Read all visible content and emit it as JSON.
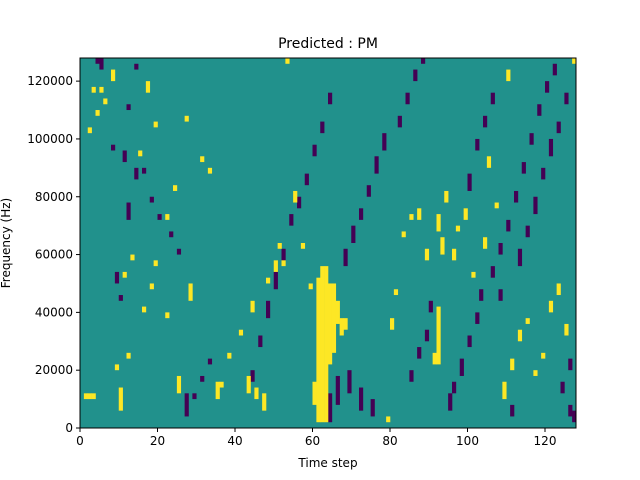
{
  "chart_data": {
    "type": "heatmap",
    "title": "Predicted : PM",
    "xlabel": "Time step",
    "ylabel": "Frequency (Hz)",
    "xlim": [
      0,
      128
    ],
    "ylim": [
      0,
      128000
    ],
    "x_ticks": [
      0,
      20,
      40,
      60,
      80,
      100,
      120
    ],
    "y_ticks": [
      0,
      20000,
      40000,
      60000,
      80000,
      100000,
      120000
    ],
    "x_tick_labels": [
      "0",
      "20",
      "40",
      "60",
      "80",
      "100",
      "120"
    ],
    "y_tick_labels": [
      "0",
      "20000",
      "40000",
      "60000",
      "80000",
      "100000",
      "120000"
    ],
    "n_time_steps": 128,
    "n_freq_bins": 64,
    "freq_bin_width_hz": 2000,
    "value_levels": [
      -1,
      0,
      1
    ],
    "colors": {
      "low": "#440154",
      "mid": "#21918c",
      "high": "#fde725"
    },
    "background_value": 0,
    "high_cells": [
      [
        60,
        4,
        8
      ],
      [
        61,
        1,
        26
      ],
      [
        62,
        1,
        28
      ],
      [
        63,
        1,
        28
      ],
      [
        64,
        11,
        25
      ],
      [
        65,
        13,
        25
      ],
      [
        66,
        18,
        22
      ],
      [
        67,
        16,
        19
      ],
      [
        68,
        17,
        19
      ],
      [
        59,
        24,
        25
      ],
      [
        91,
        11,
        13
      ],
      [
        92,
        11,
        21
      ],
      [
        93,
        30,
        33
      ],
      [
        94,
        39,
        41
      ],
      [
        92,
        34,
        37
      ],
      [
        1,
        5,
        6
      ],
      [
        2,
        5,
        6
      ],
      [
        3,
        5,
        6
      ],
      [
        10,
        3,
        7
      ],
      [
        9,
        10,
        11
      ],
      [
        12,
        12,
        13
      ],
      [
        11,
        26,
        27
      ],
      [
        13,
        29,
        30
      ],
      [
        16,
        20,
        21
      ],
      [
        18,
        24,
        25
      ],
      [
        19,
        28,
        29
      ],
      [
        22,
        19,
        20
      ],
      [
        25,
        6,
        9
      ],
      [
        28,
        22,
        25
      ],
      [
        3,
        58,
        59
      ],
      [
        5,
        58,
        59
      ],
      [
        8,
        60,
        62
      ],
      [
        2,
        51,
        52
      ],
      [
        4,
        54,
        55
      ],
      [
        6,
        56,
        57
      ],
      [
        15,
        47,
        48
      ],
      [
        17,
        58,
        60
      ],
      [
        19,
        52,
        53
      ],
      [
        22,
        36,
        37
      ],
      [
        24,
        41,
        42
      ],
      [
        27,
        53,
        54
      ],
      [
        31,
        46,
        47
      ],
      [
        33,
        44,
        45
      ],
      [
        43,
        6,
        9
      ],
      [
        45,
        5,
        7
      ],
      [
        47,
        3,
        6
      ],
      [
        52,
        28,
        29
      ],
      [
        51,
        31,
        32
      ],
      [
        57,
        31,
        32
      ],
      [
        55,
        39,
        41
      ],
      [
        53,
        63,
        64
      ],
      [
        35,
        5,
        8
      ],
      [
        36,
        7,
        8
      ],
      [
        38,
        12,
        13
      ],
      [
        41,
        16,
        17
      ],
      [
        44,
        20,
        22
      ],
      [
        48,
        25,
        26
      ],
      [
        50,
        27,
        29
      ],
      [
        79,
        1,
        2
      ],
      [
        80,
        17,
        19
      ],
      [
        81,
        23,
        24
      ],
      [
        83,
        33,
        34
      ],
      [
        85,
        36,
        37
      ],
      [
        87,
        36,
        38
      ],
      [
        89,
        29,
        31
      ],
      [
        96,
        29,
        31
      ],
      [
        97,
        34,
        35
      ],
      [
        99,
        36,
        38
      ],
      [
        101,
        26,
        27
      ],
      [
        104,
        31,
        33
      ],
      [
        107,
        38,
        39
      ],
      [
        109,
        5,
        8
      ],
      [
        111,
        10,
        12
      ],
      [
        113,
        15,
        17
      ],
      [
        115,
        18,
        19
      ],
      [
        117,
        9,
        10
      ],
      [
        119,
        12,
        13
      ],
      [
        121,
        20,
        22
      ],
      [
        123,
        23,
        25
      ],
      [
        125,
        16,
        18
      ],
      [
        127,
        63,
        64
      ],
      [
        105,
        45,
        47
      ],
      [
        110,
        60,
        62
      ]
    ],
    "low_cells": [
      [
        4,
        63,
        64
      ],
      [
        5,
        62,
        64
      ],
      [
        8,
        48,
        49
      ],
      [
        12,
        55,
        56
      ],
      [
        14,
        62,
        63
      ],
      [
        16,
        44,
        45
      ],
      [
        18,
        39,
        40
      ],
      [
        20,
        36,
        37
      ],
      [
        23,
        33,
        34
      ],
      [
        25,
        30,
        31
      ],
      [
        27,
        2,
        6
      ],
      [
        29,
        5,
        6
      ],
      [
        31,
        8,
        9
      ],
      [
        33,
        11,
        12
      ],
      [
        12,
        36,
        39
      ],
      [
        14,
        43,
        45
      ],
      [
        10,
        22,
        23
      ],
      [
        11,
        46,
        48
      ],
      [
        9,
        25,
        27
      ],
      [
        44,
        8,
        10
      ],
      [
        46,
        14,
        16
      ],
      [
        48,
        19,
        22
      ],
      [
        50,
        24,
        27
      ],
      [
        52,
        29,
        31
      ],
      [
        54,
        35,
        37
      ],
      [
        56,
        38,
        40
      ],
      [
        58,
        42,
        44
      ],
      [
        60,
        47,
        49
      ],
      [
        62,
        51,
        53
      ],
      [
        64,
        56,
        58
      ],
      [
        68,
        28,
        31
      ],
      [
        70,
        32,
        35
      ],
      [
        72,
        36,
        38
      ],
      [
        74,
        40,
        42
      ],
      [
        76,
        44,
        47
      ],
      [
        78,
        48,
        51
      ],
      [
        82,
        52,
        54
      ],
      [
        84,
        56,
        58
      ],
      [
        86,
        60,
        62
      ],
      [
        88,
        63,
        64
      ],
      [
        85,
        8,
        10
      ],
      [
        87,
        12,
        14
      ],
      [
        89,
        15,
        17
      ],
      [
        90,
        20,
        22
      ],
      [
        95,
        3,
        6
      ],
      [
        96,
        6,
        8
      ],
      [
        98,
        9,
        12
      ],
      [
        100,
        14,
        16
      ],
      [
        102,
        18,
        20
      ],
      [
        103,
        22,
        24
      ],
      [
        106,
        26,
        28
      ],
      [
        108,
        30,
        32
      ],
      [
        110,
        34,
        36
      ],
      [
        112,
        39,
        41
      ],
      [
        114,
        44,
        46
      ],
      [
        116,
        49,
        51
      ],
      [
        118,
        54,
        56
      ],
      [
        120,
        58,
        60
      ],
      [
        122,
        61,
        63
      ],
      [
        124,
        6,
        8
      ],
      [
        126,
        10,
        12
      ],
      [
        127,
        1,
        3
      ],
      [
        64,
        1,
        6
      ],
      [
        66,
        4,
        9
      ],
      [
        69,
        6,
        10
      ],
      [
        72,
        3,
        7
      ],
      [
        75,
        2,
        5
      ],
      [
        100,
        41,
        44
      ],
      [
        102,
        48,
        50
      ],
      [
        104,
        52,
        54
      ],
      [
        106,
        56,
        58
      ],
      [
        108,
        22,
        24
      ],
      [
        111,
        2,
        4
      ],
      [
        113,
        28,
        31
      ],
      [
        115,
        33,
        35
      ],
      [
        117,
        37,
        40
      ],
      [
        119,
        43,
        45
      ],
      [
        121,
        47,
        50
      ],
      [
        123,
        51,
        53
      ],
      [
        125,
        56,
        58
      ],
      [
        126,
        2,
        4
      ]
    ]
  }
}
